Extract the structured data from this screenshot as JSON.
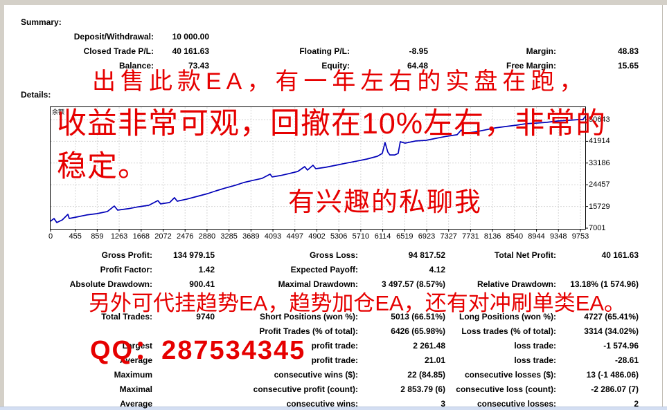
{
  "window": {
    "frame_color": "#d4d0c8",
    "bottom_strip_color": "#d3def2",
    "background": "#ffffff"
  },
  "summary": {
    "title": "Summary:",
    "rows": [
      [
        "Deposit/Withdrawal:",
        "10 000.00",
        "",
        "",
        "",
        ""
      ],
      [
        "Closed Trade P/L:",
        "40 161.63",
        "Floating P/L:",
        "-8.95",
        "Margin:",
        "48.83"
      ],
      [
        "Balance:",
        "73.43",
        "Equity:",
        "64.48",
        "Free Margin:",
        "15.65"
      ]
    ]
  },
  "details": {
    "title": "Details:",
    "rows": [
      [
        "Gross Profit:",
        "134 979.15",
        "Gross Loss:",
        "94 817.52",
        "Total Net Profit:",
        "40 161.63"
      ],
      [
        "Profit Factor:",
        "1.42",
        "Expected Payoff:",
        "4.12",
        "",
        ""
      ],
      [
        "Absolute Drawdown:",
        "900.41",
        "Maximal Drawdown:",
        "3 497.57 (8.57%)",
        "Relative Drawdown:",
        "13.18% (1 574.96)"
      ],
      [
        "Total Trades:",
        "9740",
        "Short Positions (won %):",
        "5013 (66.51%)",
        "Long Positions (won %):",
        "4727 (65.41%)"
      ],
      [
        "",
        "",
        "Profit Trades (% of total):",
        "6426 (65.98%)",
        "Loss trades (% of total):",
        "3314 (34.02%)"
      ],
      [
        "Largest",
        "",
        "profit trade:",
        "2 261.48",
        "loss trade:",
        "-1 574.96"
      ],
      [
        "Average",
        "",
        "profit trade:",
        "21.01",
        "loss trade:",
        "-28.61"
      ],
      [
        "Maximum",
        "",
        "consecutive wins ($):",
        "22 (84.85)",
        "consecutive losses ($):",
        "13 (-1 486.06)"
      ],
      [
        "Maximal",
        "",
        "consecutive profit (count):",
        "2 853.79 (6)",
        "consecutive loss (count):",
        "-2 286.07 (7)"
      ],
      [
        "Average",
        "",
        "consecutive wins:",
        "3",
        "consecutive losses:",
        "2"
      ]
    ]
  },
  "ad_overlay": {
    "color": "#e60000",
    "line1": "出售此款EA，有一年左右的实盘在跑，",
    "line2": "收益非常可观，回撤在10%左右，非常的",
    "line3": "稳定。",
    "line4": "有兴趣的私聊我",
    "line5": "另外可代挂趋势EA，趋势加仓EA，还有对冲刷单类EA。",
    "qq": "QQ：287534345"
  },
  "chart_data": {
    "type": "line",
    "title": "余额",
    "xlabel": "",
    "ylabel": "",
    "grid": true,
    "legend": false,
    "xlim": [
      0,
      9842
    ],
    "ylim": [
      7001,
      55646
    ],
    "xticks": [
      0,
      455,
      859,
      1263,
      1668,
      2072,
      2476,
      2880,
      3285,
      3689,
      4093,
      4497,
      4902,
      5306,
      5710,
      6114,
      6519,
      6923,
      7327,
      7731,
      8136,
      8540,
      8944,
      9348,
      9753
    ],
    "yticks": [
      7001,
      15729,
      24457,
      33186,
      41914,
      50643
    ],
    "series": [
      {
        "name": "余额",
        "color": "#0000b8",
        "points": [
          [
            0,
            9800
          ],
          [
            64,
            10900
          ],
          [
            115,
            9250
          ],
          [
            217,
            10350
          ],
          [
            319,
            12550
          ],
          [
            344,
            10900
          ],
          [
            472,
            11450
          ],
          [
            663,
            12300
          ],
          [
            854,
            12850
          ],
          [
            1045,
            13700
          ],
          [
            1173,
            15900
          ],
          [
            1236,
            14250
          ],
          [
            1428,
            14800
          ],
          [
            1619,
            15600
          ],
          [
            1810,
            16200
          ],
          [
            1975,
            18100
          ],
          [
            2026,
            16750
          ],
          [
            2192,
            17300
          ],
          [
            2281,
            19250
          ],
          [
            2332,
            17850
          ],
          [
            2511,
            18700
          ],
          [
            2702,
            19800
          ],
          [
            2893,
            20900
          ],
          [
            3046,
            22000
          ],
          [
            3212,
            23100
          ],
          [
            3403,
            24250
          ],
          [
            3556,
            25350
          ],
          [
            3722,
            26200
          ],
          [
            3888,
            27000
          ],
          [
            4041,
            28700
          ],
          [
            4079,
            27600
          ],
          [
            4232,
            28150
          ],
          [
            4397,
            29000
          ],
          [
            4550,
            29800
          ],
          [
            4678,
            31750
          ],
          [
            4729,
            30350
          ],
          [
            4831,
            32300
          ],
          [
            4882,
            30900
          ],
          [
            5060,
            31450
          ],
          [
            5251,
            32300
          ],
          [
            5443,
            33150
          ],
          [
            5634,
            33950
          ],
          [
            5825,
            34800
          ],
          [
            6016,
            35900
          ],
          [
            6105,
            37050
          ],
          [
            6156,
            41450
          ],
          [
            6207,
            37600
          ],
          [
            6246,
            36450
          ],
          [
            6335,
            36450
          ],
          [
            6399,
            37050
          ],
          [
            6437,
            41750
          ],
          [
            6526,
            41200
          ],
          [
            6717,
            42050
          ],
          [
            6909,
            42300
          ],
          [
            7100,
            43150
          ],
          [
            7291,
            43950
          ],
          [
            7482,
            44550
          ],
          [
            7559,
            46450
          ],
          [
            7610,
            45100
          ],
          [
            7801,
            45650
          ],
          [
            7992,
            46450
          ],
          [
            8183,
            47300
          ],
          [
            8375,
            47850
          ],
          [
            8566,
            48400
          ],
          [
            8757,
            49000
          ],
          [
            8948,
            49250
          ],
          [
            9139,
            49550
          ],
          [
            9331,
            50100
          ],
          [
            9522,
            50350
          ],
          [
            9713,
            50650
          ],
          [
            9800,
            50650
          ],
          [
            9840,
            51900
          ]
        ]
      }
    ]
  }
}
